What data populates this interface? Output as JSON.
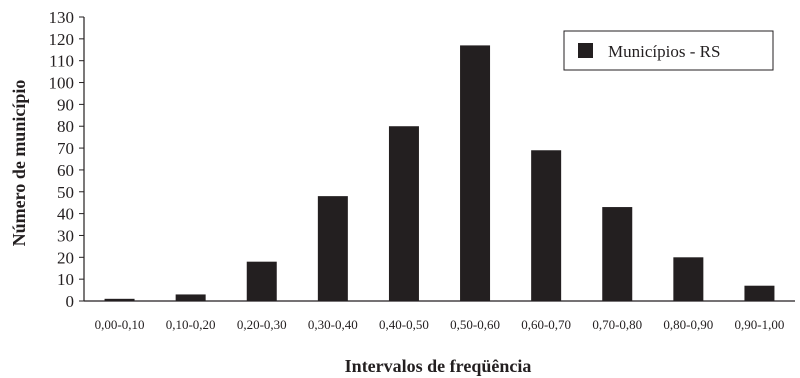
{
  "chart_data": {
    "type": "bar",
    "title": "",
    "xlabel": "Intervalos de freqüência",
    "ylabel": "Número de município",
    "categories": [
      "0,00-0,10",
      "0,10-0,20",
      "0,20-0,30",
      "0,30-0,40",
      "0,40-0,50",
      "0,50-0,60",
      "0,60-0,70",
      "0,70-0,80",
      "0,80-0,90",
      "0,90-1,00"
    ],
    "series": [
      {
        "name": "Municípios - RS",
        "values": [
          1,
          3,
          18,
          48,
          80,
          117,
          69,
          43,
          20,
          7
        ]
      }
    ],
    "ylim": [
      0,
      130
    ],
    "yticks": [
      0,
      10,
      20,
      30,
      40,
      50,
      60,
      70,
      80,
      90,
      100,
      110,
      120,
      130
    ],
    "grid": false,
    "legend": "top-right",
    "colors": {
      "bar": "#231f20",
      "axis": "#231f20",
      "background": "#ffffff"
    }
  }
}
